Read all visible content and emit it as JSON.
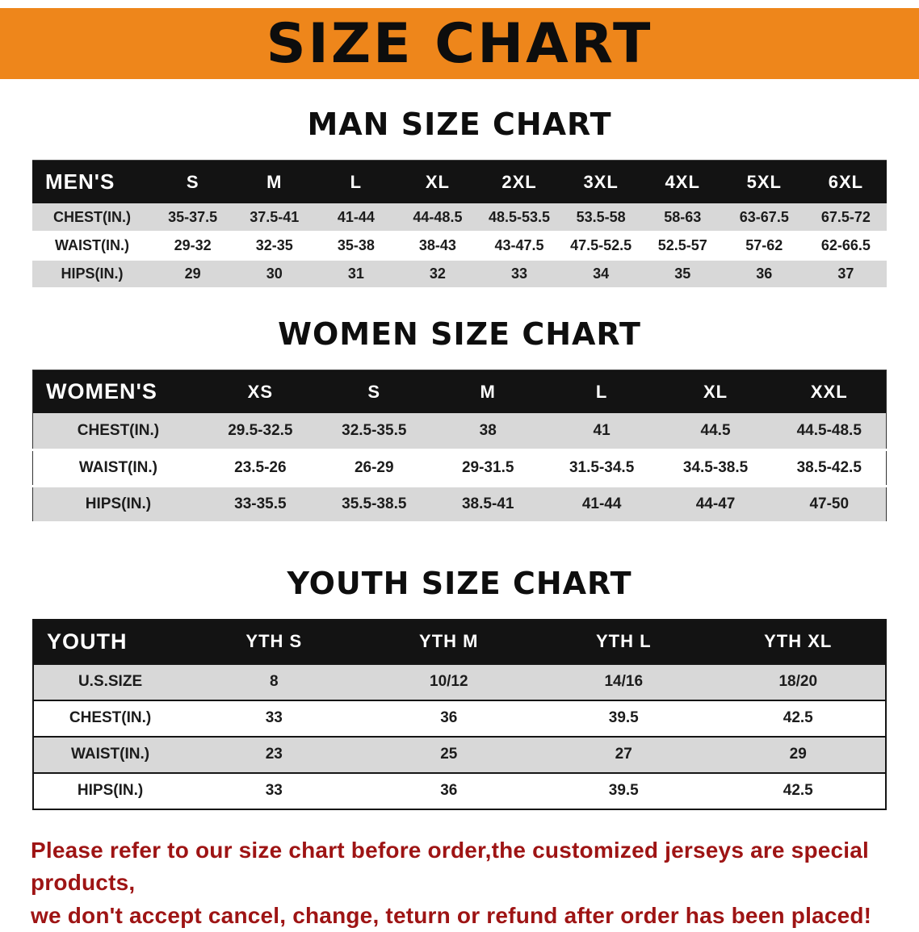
{
  "banner": {
    "title": "SIZE CHART",
    "color": "#EE861B"
  },
  "tables": [
    {
      "heading": "MAN SIZE CHART",
      "header_label": "MEN'S",
      "columns": [
        "S",
        "M",
        "L",
        "XL",
        "2XL",
        "3XL",
        "4XL",
        "5XL",
        "6XL"
      ],
      "rows": [
        {
          "label": "CHEST(IN.)",
          "values": [
            "35-37.5",
            "37.5-41",
            "41-44",
            "44-48.5",
            "48.5-53.5",
            "53.5-58",
            "58-63",
            "63-67.5",
            "67.5-72"
          ]
        },
        {
          "label": "WAIST(IN.)",
          "values": [
            "29-32",
            "32-35",
            "35-38",
            "38-43",
            "43-47.5",
            "47.5-52.5",
            "52.5-57",
            "57-62",
            "62-66.5"
          ]
        },
        {
          "label": "HIPS(IN.)",
          "values": [
            "29",
            "30",
            "31",
            "32",
            "33",
            "34",
            "35",
            "36",
            "37"
          ]
        }
      ]
    },
    {
      "heading": "WOMEN SIZE CHART",
      "header_label": "WOMEN'S",
      "columns": [
        "XS",
        "S",
        "M",
        "L",
        "XL",
        "XXL"
      ],
      "rows": [
        {
          "label": "CHEST(IN.)",
          "values": [
            "29.5-32.5",
            "32.5-35.5",
            "38",
            "41",
            "44.5",
            "44.5-48.5"
          ]
        },
        {
          "label": "WAIST(IN.)",
          "values": [
            "23.5-26",
            "26-29",
            "29-31.5",
            "31.5-34.5",
            "34.5-38.5",
            "38.5-42.5"
          ]
        },
        {
          "label": "HIPS(IN.)",
          "values": [
            "33-35.5",
            "35.5-38.5",
            "38.5-41",
            "41-44",
            "44-47",
            "47-50"
          ]
        }
      ]
    },
    {
      "heading": "YOUTH SIZE CHART",
      "header_label": "YOUTH",
      "columns": [
        "YTH S",
        "YTH M",
        "YTH L",
        "YTH XL"
      ],
      "rows": [
        {
          "label": "U.S.SIZE",
          "values": [
            "8",
            "10/12",
            "14/16",
            "18/20"
          ]
        },
        {
          "label": "CHEST(IN.)",
          "values": [
            "33",
            "36",
            "39.5",
            "42.5"
          ]
        },
        {
          "label": "WAIST(IN.)",
          "values": [
            "23",
            "25",
            "27",
            "29"
          ]
        },
        {
          "label": "HIPS(IN.)",
          "values": [
            "33",
            "36",
            "39.5",
            "42.5"
          ]
        }
      ]
    }
  ],
  "footer": {
    "line1": "Please refer to our size chart before order,the customized jerseys are special products,",
    "line2": "we don't accept cancel, change, teturn or refund after order has been placed!",
    "color": "#9e1414"
  }
}
